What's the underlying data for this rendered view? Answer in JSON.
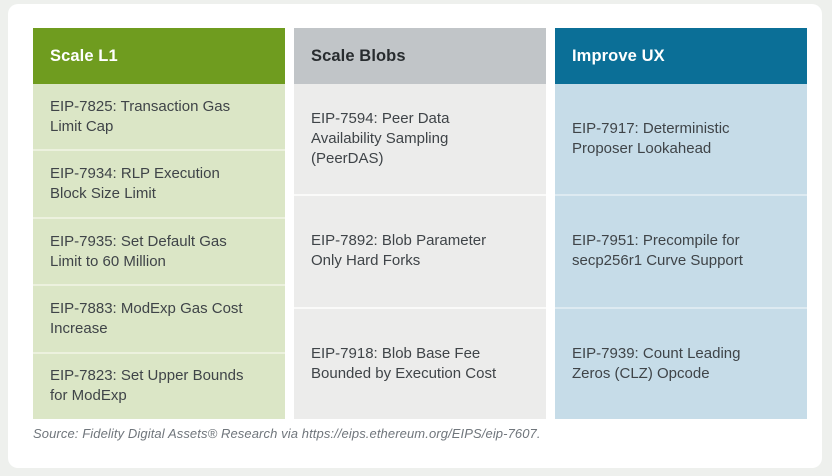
{
  "table": {
    "columns": [
      {
        "header": "Scale L1",
        "items": [
          "EIP-7825: Transaction Gas Limit Cap",
          "EIP-7934: RLP Execution Block Size Limit",
          "EIP-7935: Set Default Gas Limit to 60 Million",
          "EIP-7883: ModExp Gas Cost Increase",
          "EIP-7823: Set Upper Bounds for ModExp"
        ]
      },
      {
        "header": "Scale Blobs",
        "items": [
          "EIP-7594: Peer Data Availability Sampling (PeerDAS)",
          "EIP-7892: Blob Parameter Only Hard Forks",
          "EIP-7918: Blob Base Fee Bounded by Execution Cost"
        ]
      },
      {
        "header": "Improve UX",
        "items": [
          "EIP-7917: Deterministic Proposer Lookahead",
          "EIP-7951: Precompile for secp256r1 Curve Support",
          "EIP-7939: Count Leading Zeros (CLZ) Opcode"
        ]
      }
    ]
  },
  "source": "Source: Fidelity Digital Assets® Research via https://eips.ethereum.org/EIPS/eip-7607.",
  "colors": {
    "header_green": "#6f9c1f",
    "cell_green": "#dbe6c6",
    "header_gray": "#c1c5c8",
    "cell_gray": "#ececeb",
    "header_blue": "#0b6f97",
    "cell_blue": "#c6dce8",
    "card_background": "#ffffff",
    "page_background": "#eef0ed",
    "cell_text": "#3f4448",
    "source_text": "#70767c"
  }
}
